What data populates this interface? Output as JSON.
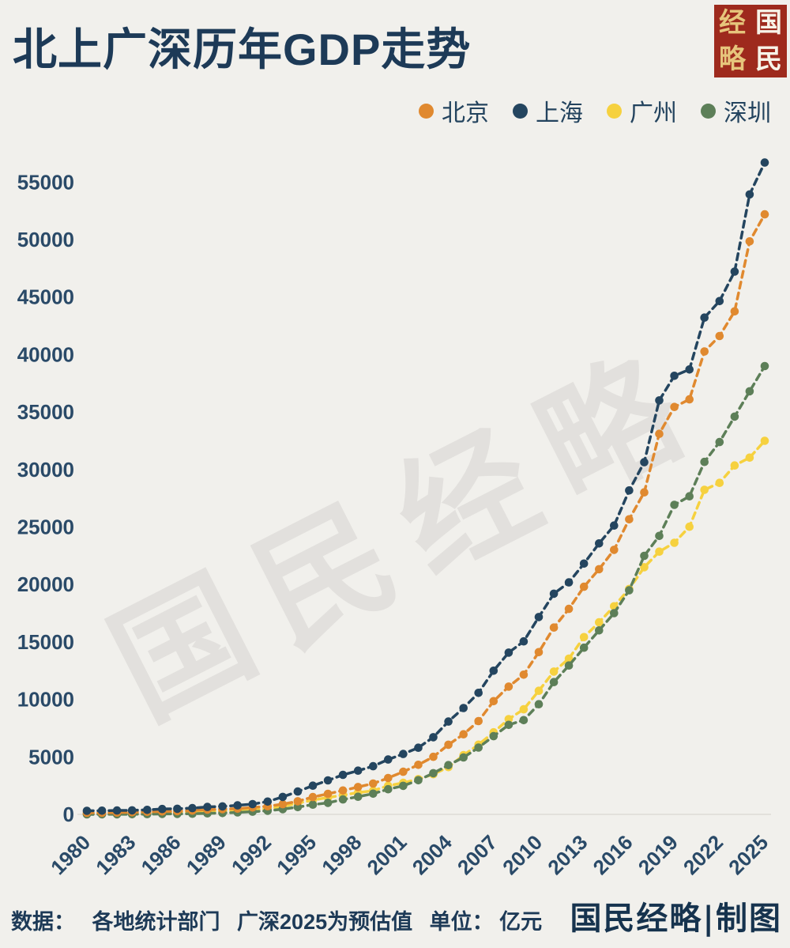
{
  "header": {
    "title": "北上广深历年GDP走势",
    "logo_chars": [
      "经",
      "略",
      "国",
      "民"
    ],
    "logo_bg": "#9e2a1d"
  },
  "legend": [
    {
      "label": "北京",
      "color": "#e0892f"
    },
    {
      "label": "上海",
      "color": "#24455f"
    },
    {
      "label": "广州",
      "color": "#f6d13f"
    },
    {
      "label": "深圳",
      "color": "#5d7f58"
    }
  ],
  "watermark": "国民经略",
  "chart_data": {
    "type": "line",
    "title": "北上广深历年GDP走势",
    "unit": "亿元",
    "x": [
      1980,
      1981,
      1982,
      1983,
      1984,
      1985,
      1986,
      1987,
      1988,
      1989,
      1990,
      1991,
      1992,
      1993,
      1994,
      1995,
      1996,
      1997,
      1998,
      1999,
      2000,
      2001,
      2002,
      2003,
      2004,
      2005,
      2006,
      2007,
      2008,
      2009,
      2010,
      2011,
      2012,
      2013,
      2014,
      2015,
      2016,
      2017,
      2018,
      2019,
      2020,
      2021,
      2022,
      2023,
      2024,
      2025
    ],
    "x_tick_labels": [
      "1980",
      "1983",
      "1986",
      "1989",
      "1992",
      "1995",
      "1998",
      "2001",
      "2004",
      "2007",
      "2010",
      "2013",
      "2016",
      "2019",
      "2022",
      "2025"
    ],
    "ylim": [
      0,
      57500
    ],
    "yticks": [
      0,
      5000,
      10000,
      15000,
      20000,
      25000,
      30000,
      35000,
      40000,
      45000,
      50000,
      55000
    ],
    "grid": false,
    "legend_position": "top-right",
    "line_style": "dashed-with-markers",
    "series": [
      {
        "name": "北京",
        "color": "#e0892f",
        "values": [
          139,
          139,
          155,
          183,
          217,
          257,
          285,
          327,
          410,
          456,
          501,
          599,
          709,
          886,
          1145,
          1508,
          1789,
          2077,
          2377,
          2679,
          3162,
          3708,
          4315,
          5007,
          6060,
          6970,
          8118,
          9847,
          11115,
          12153,
          14114,
          16252,
          17879,
          19801,
          21331,
          23015,
          25669,
          28015,
          33106,
          35445,
          36103,
          40270,
          41611,
          43761,
          49843,
          52200
        ]
      },
      {
        "name": "上海",
        "color": "#24455f",
        "values": [
          312,
          324,
          337,
          352,
          391,
          467,
          491,
          545,
          648,
          697,
          782,
          894,
          1114,
          1519,
          1991,
          2499,
          2958,
          3439,
          3801,
          4188,
          4771,
          5257,
          5795,
          6711,
          8073,
          9248,
          10572,
          12494,
          14070,
          15046,
          17166,
          19195,
          20182,
          21818,
          23568,
          25123,
          28179,
          30633,
          36012,
          38155,
          38701,
          43215,
          44653,
          47219,
          53927,
          56700
        ]
      },
      {
        "name": "广州",
        "color": "#f6d13f",
        "values": [
          57,
          64,
          72,
          82,
          98,
          126,
          148,
          182,
          240,
          289,
          320,
          386,
          495,
          681,
          972,
          1243,
          1468,
          1678,
          1893,
          2057,
          2493,
          2742,
          3068,
          3497,
          4116,
          5154,
          6068,
          7140,
          8287,
          9138,
          10748,
          12423,
          13551,
          15420,
          16707,
          18100,
          19611,
          21503,
          22859,
          23629,
          25019,
          28232,
          28839,
          30356,
          31033,
          32500
        ]
      },
      {
        "name": "深圳",
        "color": "#5d7f58",
        "values": [
          3,
          5,
          8,
          13,
          23,
          39,
          42,
          56,
          87,
          116,
          172,
          237,
          317,
          453,
          634,
          843,
          1001,
          1297,
          1535,
          1804,
          2187,
          2482,
          2970,
          3586,
          4282,
          4951,
          5814,
          6802,
          7787,
          8201,
          9582,
          11506,
          12950,
          14500,
          16002,
          17503,
          19493,
          22490,
          24222,
          26927,
          27670,
          30665,
          32388,
          34606,
          36802,
          39000
        ]
      }
    ]
  },
  "footer": {
    "source_label": "数据：",
    "source": "各地统计部门",
    "note": "广深2025为预估值",
    "unit_label": "单位：",
    "unit": "亿元",
    "credit": "国民经略|制图"
  }
}
